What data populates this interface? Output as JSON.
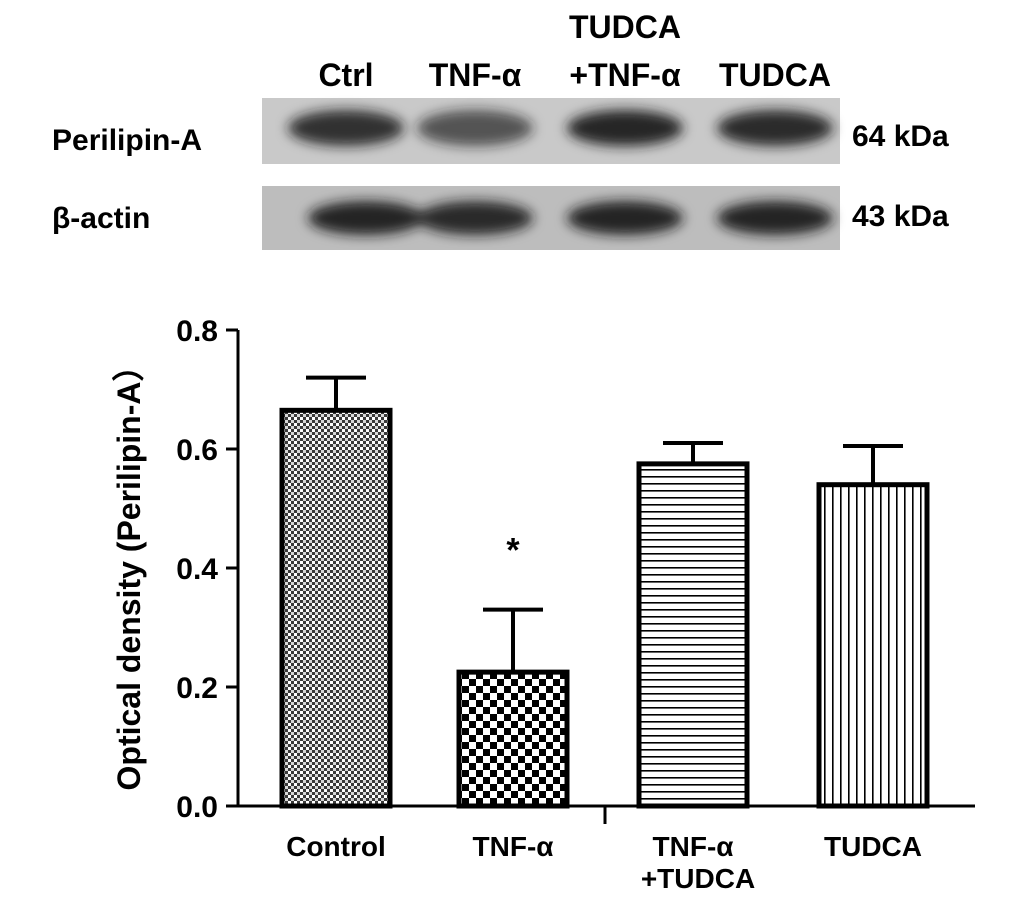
{
  "blot": {
    "lanes": [
      {
        "lines": [
          "Ctrl"
        ]
      },
      {
        "lines": [
          "TNF-α"
        ]
      },
      {
        "lines": [
          "TUDCA",
          "+TNF-α"
        ]
      },
      {
        "lines": [
          "TUDCA"
        ]
      }
    ],
    "rows": [
      {
        "name": "Perilipin-A",
        "weight": "64 kDa",
        "band_intensity": [
          0.85,
          0.55,
          1.0,
          0.9
        ]
      },
      {
        "name": "β-actin",
        "weight": "43 kDa",
        "band_intensity": [
          0.95,
          0.9,
          0.95,
          0.95
        ]
      }
    ]
  },
  "chart_data": {
    "type": "bar",
    "categories": [
      {
        "lines": [
          "Control"
        ]
      },
      {
        "lines": [
          "TNF-α"
        ]
      },
      {
        "lines": [
          "TNF-α",
          "+TUDCA"
        ]
      },
      {
        "lines": [
          "TUDCA"
        ]
      }
    ],
    "values": [
      0.665,
      0.225,
      0.575,
      0.54
    ],
    "error": [
      0.055,
      0.105,
      0.035,
      0.065
    ],
    "patterns": [
      "dense-crosshatch",
      "checkerboard",
      "horizontal-lines",
      "vertical-lines"
    ],
    "annotations": [
      "",
      "*",
      "",
      ""
    ],
    "ylabel": "Optical density (Perilipin-A）",
    "ylim": [
      0,
      0.8
    ],
    "yticks": [
      "0.0",
      "0.2",
      "0.4",
      "0.6",
      "0.8"
    ],
    "grid": false,
    "colors": {
      "bar_outline": "#000000",
      "fill": "#ffffff"
    }
  }
}
